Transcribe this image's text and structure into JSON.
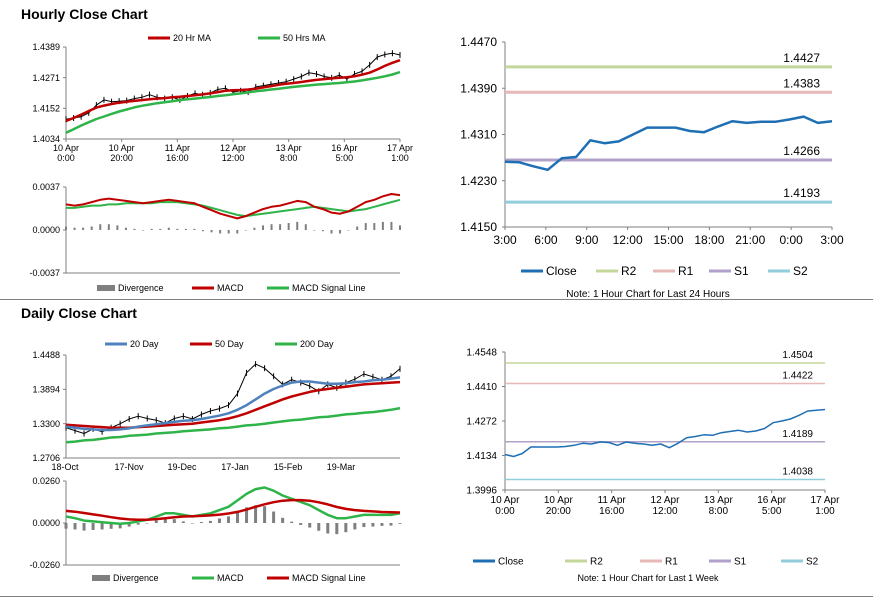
{
  "sections": {
    "hourly_title": "Hourly Close Chart",
    "daily_title": "Daily Close Chart"
  },
  "colors": {
    "price": "#000000",
    "ma_red": "#c00000",
    "ma_green": "#2fb44a",
    "ma_blue": "#4f81bd",
    "close_blue": "#1f6fb5",
    "r2": "#c4d79b",
    "r1": "#e6b8b7",
    "s1": "#b1a0c7",
    "s2": "#92cddc",
    "divergence": "#7f7f7f",
    "axis": "#7f7f7f"
  },
  "chart_data": [
    {
      "id": "hourly_price",
      "type": "line",
      "title": "Hourly Close Chart",
      "legend": [
        "20 Hr MA",
        "50 Hrs MA"
      ],
      "yticks": [
        "1.4389",
        "1.4271",
        "1.4152",
        "1.4034"
      ],
      "ylim": [
        1.4034,
        1.4389
      ],
      "xticks": [
        [
          "10 Apr",
          "0:00"
        ],
        [
          "10 Apr",
          "20:00"
        ],
        [
          "11 Apr",
          "16:00"
        ],
        [
          "12 Apr",
          "12:00"
        ],
        [
          "13 Apr",
          "8:00"
        ],
        [
          "16 Apr",
          "5:00"
        ],
        [
          "17 Apr",
          "1:00"
        ]
      ],
      "series": [
        {
          "name": "Price",
          "values": [
            1.411,
            1.4115,
            1.412,
            1.4135,
            1.4165,
            1.4185,
            1.4178,
            1.418,
            1.4182,
            1.419,
            1.4195,
            1.4205,
            1.4195,
            1.419,
            1.4195,
            1.4185,
            1.42,
            1.421,
            1.4205,
            1.4212,
            1.4225,
            1.423,
            1.4215,
            1.422,
            1.4215,
            1.4235,
            1.424,
            1.4245,
            1.425,
            1.4255,
            1.4265,
            1.4275,
            1.429,
            1.4285,
            1.4275,
            1.427,
            1.428,
            1.4265,
            1.4285,
            1.4295,
            1.432,
            1.435,
            1.436,
            1.4365,
            1.4358
          ]
        },
        {
          "name": "20 Hr MA",
          "values": [
            1.4104,
            1.4115,
            1.4128,
            1.4142,
            1.4155,
            1.4163,
            1.4169,
            1.4174,
            1.4178,
            1.4181,
            1.4184,
            1.4187,
            1.419,
            1.4192,
            1.4195,
            1.4197,
            1.42,
            1.4203,
            1.4206,
            1.421,
            1.4215,
            1.422,
            1.4222,
            1.4223,
            1.4225,
            1.4228,
            1.4233,
            1.4238,
            1.4243,
            1.4247,
            1.425,
            1.4254,
            1.4258,
            1.4262,
            1.4265,
            1.4268,
            1.427,
            1.4272,
            1.4276,
            1.4282,
            1.429,
            1.4302,
            1.4316,
            1.4328,
            1.4338
          ]
        },
        {
          "name": "50 Hrs MA",
          "values": [
            1.4058,
            1.4072,
            1.4086,
            1.4099,
            1.4111,
            1.4121,
            1.4131,
            1.414,
            1.4148,
            1.4156,
            1.4162,
            1.4167,
            1.4172,
            1.4176,
            1.418,
            1.4184,
            1.4187,
            1.419,
            1.4193,
            1.4196,
            1.42,
            1.4203,
            1.4207,
            1.421,
            1.4214,
            1.4218,
            1.4221,
            1.4225,
            1.4228,
            1.4232,
            1.4235,
            1.4238,
            1.4241,
            1.4244,
            1.4246,
            1.4248,
            1.425,
            1.4253,
            1.4256,
            1.426,
            1.4265,
            1.427,
            1.4276,
            1.4283,
            1.4292
          ]
        }
      ]
    },
    {
      "id": "hourly_macd",
      "type": "line",
      "legend": [
        "Divergence",
        "MACD",
        "MACD Signal Line"
      ],
      "yticks": [
        "0.0037",
        "0.0000",
        "-0.0037"
      ],
      "ylim": [
        -0.0037,
        0.0037
      ],
      "series": [
        {
          "name": "MACD",
          "values": [
            0.0022,
            0.0021,
            0.0022,
            0.0024,
            0.0026,
            0.0027,
            0.0026,
            0.0025,
            0.0024,
            0.0023,
            0.0024,
            0.0025,
            0.0026,
            0.0025,
            0.0024,
            0.0023,
            0.002,
            0.0017,
            0.0014,
            0.0012,
            0.001,
            0.0012,
            0.0015,
            0.0018,
            0.002,
            0.0021,
            0.0023,
            0.0025,
            0.0024,
            0.002,
            0.0018,
            0.0015,
            0.0014,
            0.0016,
            0.002,
            0.0024,
            0.0026,
            0.0029,
            0.0031,
            0.003
          ]
        },
        {
          "name": "MACD Signal Line",
          "values": [
            0.0019,
            0.0019,
            0.002,
            0.0021,
            0.0021,
            0.0022,
            0.0022,
            0.0023,
            0.0023,
            0.0023,
            0.0023,
            0.0024,
            0.0024,
            0.0024,
            0.0023,
            0.0022,
            0.0021,
            0.0019,
            0.0017,
            0.0015,
            0.0013,
            0.0012,
            0.0013,
            0.0014,
            0.0015,
            0.0016,
            0.0017,
            0.0018,
            0.0019,
            0.002,
            0.0019,
            0.0018,
            0.0017,
            0.0016,
            0.0017,
            0.0018,
            0.002,
            0.0022,
            0.0024,
            0.0026
          ]
        },
        {
          "name": "Divergence",
          "values": [
            0.0003,
            0.0002,
            0.0002,
            0.0003,
            0.0005,
            0.0005,
            0.0004,
            0.0002,
            0.0001,
            0.0,
            0.0001,
            0.0001,
            0.0002,
            0.0001,
            0.0001,
            0.0001,
            -0.0001,
            -0.0002,
            -0.0003,
            -0.0003,
            -0.0003,
            0.0,
            0.0002,
            0.0004,
            0.0005,
            0.0005,
            0.0006,
            0.0007,
            0.0005,
            0.0,
            -0.0001,
            -0.0003,
            -0.0003,
            0.0,
            0.0003,
            0.0006,
            0.0006,
            0.0007,
            0.0007,
            0.0004
          ]
        }
      ]
    },
    {
      "id": "hourly_levels",
      "type": "line",
      "note": "Note: 1 Hour Chart for Last 24 Hours",
      "legend": [
        "Close",
        "R2",
        "R1",
        "S1",
        "S2"
      ],
      "yticks": [
        "1.4470",
        "1.4390",
        "1.4310",
        "1.4230",
        "1.4150"
      ],
      "ylim": [
        1.415,
        1.447
      ],
      "xticks": [
        "3:00",
        "6:00",
        "9:00",
        "12:00",
        "15:00",
        "18:00",
        "21:00",
        "0:00",
        "3:00"
      ],
      "levels": {
        "R2": 1.4427,
        "R1": 1.4383,
        "S1": 1.4266,
        "S2": 1.4193
      },
      "level_labels": {
        "R2": "1.4427",
        "R1": "1.4383",
        "S1": "1.4266",
        "S2": "1.4193"
      },
      "series": [
        {
          "name": "Close",
          "values": [
            1.4263,
            1.4262,
            1.4255,
            1.4249,
            1.4269,
            1.4271,
            1.43,
            1.4295,
            1.4298,
            1.431,
            1.4322,
            1.4322,
            1.4322,
            1.4316,
            1.4314,
            1.4324,
            1.4333,
            1.433,
            1.4332,
            1.4332,
            1.4336,
            1.4341,
            1.433,
            1.4333
          ]
        }
      ]
    },
    {
      "id": "daily_price",
      "type": "line",
      "title": "Daily Close Chart",
      "legend": [
        "20 Day",
        "50 Day",
        "200 Day"
      ],
      "yticks": [
        "1.4488",
        "1.3894",
        "1.3300",
        "1.2706"
      ],
      "ylim": [
        1.2706,
        1.4488
      ],
      "xticks": [
        "18-Oct",
        "17-Nov",
        "19-Dec",
        "17-Jan",
        "15-Feb",
        "19-Mar"
      ],
      "series": [
        {
          "name": "Price",
          "values": [
            1.323,
            1.318,
            1.313,
            1.321,
            1.316,
            1.323,
            1.33,
            1.338,
            1.343,
            1.339,
            1.336,
            1.331,
            1.339,
            1.343,
            1.338,
            1.346,
            1.352,
            1.356,
            1.362,
            1.382,
            1.418,
            1.433,
            1.426,
            1.412,
            1.398,
            1.406,
            1.401,
            1.395,
            1.386,
            1.398,
            1.392,
            1.401,
            1.407,
            1.416,
            1.411,
            1.406,
            1.412,
            1.425
          ]
        },
        {
          "name": "20 Day",
          "values": [
            1.325,
            1.323,
            1.321,
            1.32,
            1.319,
            1.319,
            1.32,
            1.322,
            1.325,
            1.327,
            1.329,
            1.331,
            1.333,
            1.335,
            1.336,
            1.338,
            1.341,
            1.344,
            1.348,
            1.354,
            1.362,
            1.372,
            1.382,
            1.39,
            1.396,
            1.401,
            1.403,
            1.403,
            1.401,
            1.399,
            1.399,
            1.4,
            1.402,
            1.403,
            1.405,
            1.406,
            1.408,
            1.41
          ]
        },
        {
          "name": "50 Day",
          "values": [
            1.328,
            1.327,
            1.326,
            1.325,
            1.324,
            1.323,
            1.323,
            1.323,
            1.324,
            1.325,
            1.326,
            1.327,
            1.328,
            1.329,
            1.33,
            1.332,
            1.334,
            1.336,
            1.339,
            1.343,
            1.348,
            1.354,
            1.36,
            1.366,
            1.372,
            1.377,
            1.381,
            1.385,
            1.388,
            1.39,
            1.392,
            1.394,
            1.396,
            1.398,
            1.399,
            1.4,
            1.401,
            1.402
          ]
        },
        {
          "name": "200 Day",
          "values": [
            1.298,
            1.299,
            1.301,
            1.302,
            1.304,
            1.306,
            1.307,
            1.309,
            1.31,
            1.311,
            1.313,
            1.314,
            1.315,
            1.317,
            1.318,
            1.319,
            1.32,
            1.322,
            1.323,
            1.325,
            1.327,
            1.328,
            1.33,
            1.332,
            1.334,
            1.336,
            1.337,
            1.339,
            1.341,
            1.342,
            1.344,
            1.346,
            1.347,
            1.349,
            1.35,
            1.352,
            1.354,
            1.357
          ]
        }
      ]
    },
    {
      "id": "daily_macd",
      "type": "line",
      "legend": [
        "Divergence",
        "MACD",
        "MACD Signal Line"
      ],
      "yticks": [
        "0.0260",
        "0.0000",
        "-0.0260"
      ],
      "ylim": [
        -0.026,
        0.026
      ],
      "series": [
        {
          "name": "MACD",
          "values": [
            0.004,
            0.003,
            0.0015,
            0.001,
            0.0005,
            0.0,
            -0.0005,
            0.0,
            0.001,
            0.002,
            0.004,
            0.006,
            0.006,
            0.005,
            0.004,
            0.005,
            0.006,
            0.008,
            0.01,
            0.014,
            0.018,
            0.021,
            0.022,
            0.02,
            0.017,
            0.015,
            0.013,
            0.011,
            0.008,
            0.005,
            0.003,
            0.003,
            0.004,
            0.005,
            0.005,
            0.005,
            0.005,
            0.006
          ]
        },
        {
          "name": "MACD Signal Line",
          "values": [
            0.0075,
            0.007,
            0.0062,
            0.0053,
            0.0045,
            0.0036,
            0.0028,
            0.0022,
            0.002,
            0.002,
            0.0024,
            0.003,
            0.0036,
            0.004,
            0.0042,
            0.0044,
            0.0047,
            0.0052,
            0.0059,
            0.0069,
            0.0083,
            0.01,
            0.0116,
            0.0129,
            0.0138,
            0.0142,
            0.0142,
            0.0138,
            0.0128,
            0.0115,
            0.0099,
            0.0087,
            0.008,
            0.0075,
            0.0072,
            0.0068,
            0.0066,
            0.0065
          ]
        },
        {
          "name": "Divergence",
          "values": [
            -0.0035,
            -0.004,
            -0.0047,
            -0.0043,
            -0.004,
            -0.0036,
            -0.0033,
            -0.0022,
            -0.001,
            0.0,
            0.0016,
            0.003,
            0.0024,
            0.001,
            -0.0002,
            0.0006,
            0.0013,
            0.0028,
            0.0041,
            0.0071,
            0.0097,
            0.011,
            0.0104,
            0.0071,
            0.0032,
            0.0008,
            -0.0012,
            -0.0028,
            -0.0048,
            -0.0065,
            -0.0069,
            -0.0057,
            -0.004,
            -0.0025,
            -0.0022,
            -0.0018,
            -0.0016,
            -0.0005
          ]
        }
      ]
    },
    {
      "id": "daily_levels",
      "type": "line",
      "note": "Note: 1 Hour Chart for Last 1 Week",
      "legend": [
        "Close",
        "R2",
        "R1",
        "S1",
        "S2"
      ],
      "yticks": [
        "1.4548",
        "1.4410",
        "1.4272",
        "1.4134",
        "1.3996"
      ],
      "ylim": [
        1.3996,
        1.4548
      ],
      "xticks": [
        [
          "10 Apr",
          "0:00"
        ],
        [
          "10 Apr",
          "20:00"
        ],
        [
          "11 Apr",
          "16:00"
        ],
        [
          "12 Apr",
          "12:00"
        ],
        [
          "13 Apr",
          "8:00"
        ],
        [
          "16 Apr",
          "5:00"
        ],
        [
          "17 Apr",
          "1:00"
        ]
      ],
      "levels": {
        "R2": 1.4504,
        "R1": 1.4422,
        "S1": 1.4189,
        "S2": 1.4038
      },
      "level_labels": {
        "R2": "1.4504",
        "R1": "1.4422",
        "S1": "1.4189",
        "S2": "1.4038"
      },
      "series": [
        {
          "name": "Close",
          "values": [
            1.4138,
            1.413,
            1.4142,
            1.4168,
            1.4168,
            1.4168,
            1.4168,
            1.417,
            1.4175,
            1.4183,
            1.418,
            1.4188,
            1.4186,
            1.4175,
            1.4188,
            1.4183,
            1.418,
            1.4175,
            1.418,
            1.4165,
            1.4183,
            1.4205,
            1.421,
            1.4217,
            1.4215,
            1.4225,
            1.423,
            1.4235,
            1.4228,
            1.4232,
            1.4242,
            1.4265,
            1.4272,
            1.428,
            1.4295,
            1.4312,
            1.4315,
            1.4318
          ]
        }
      ]
    }
  ]
}
